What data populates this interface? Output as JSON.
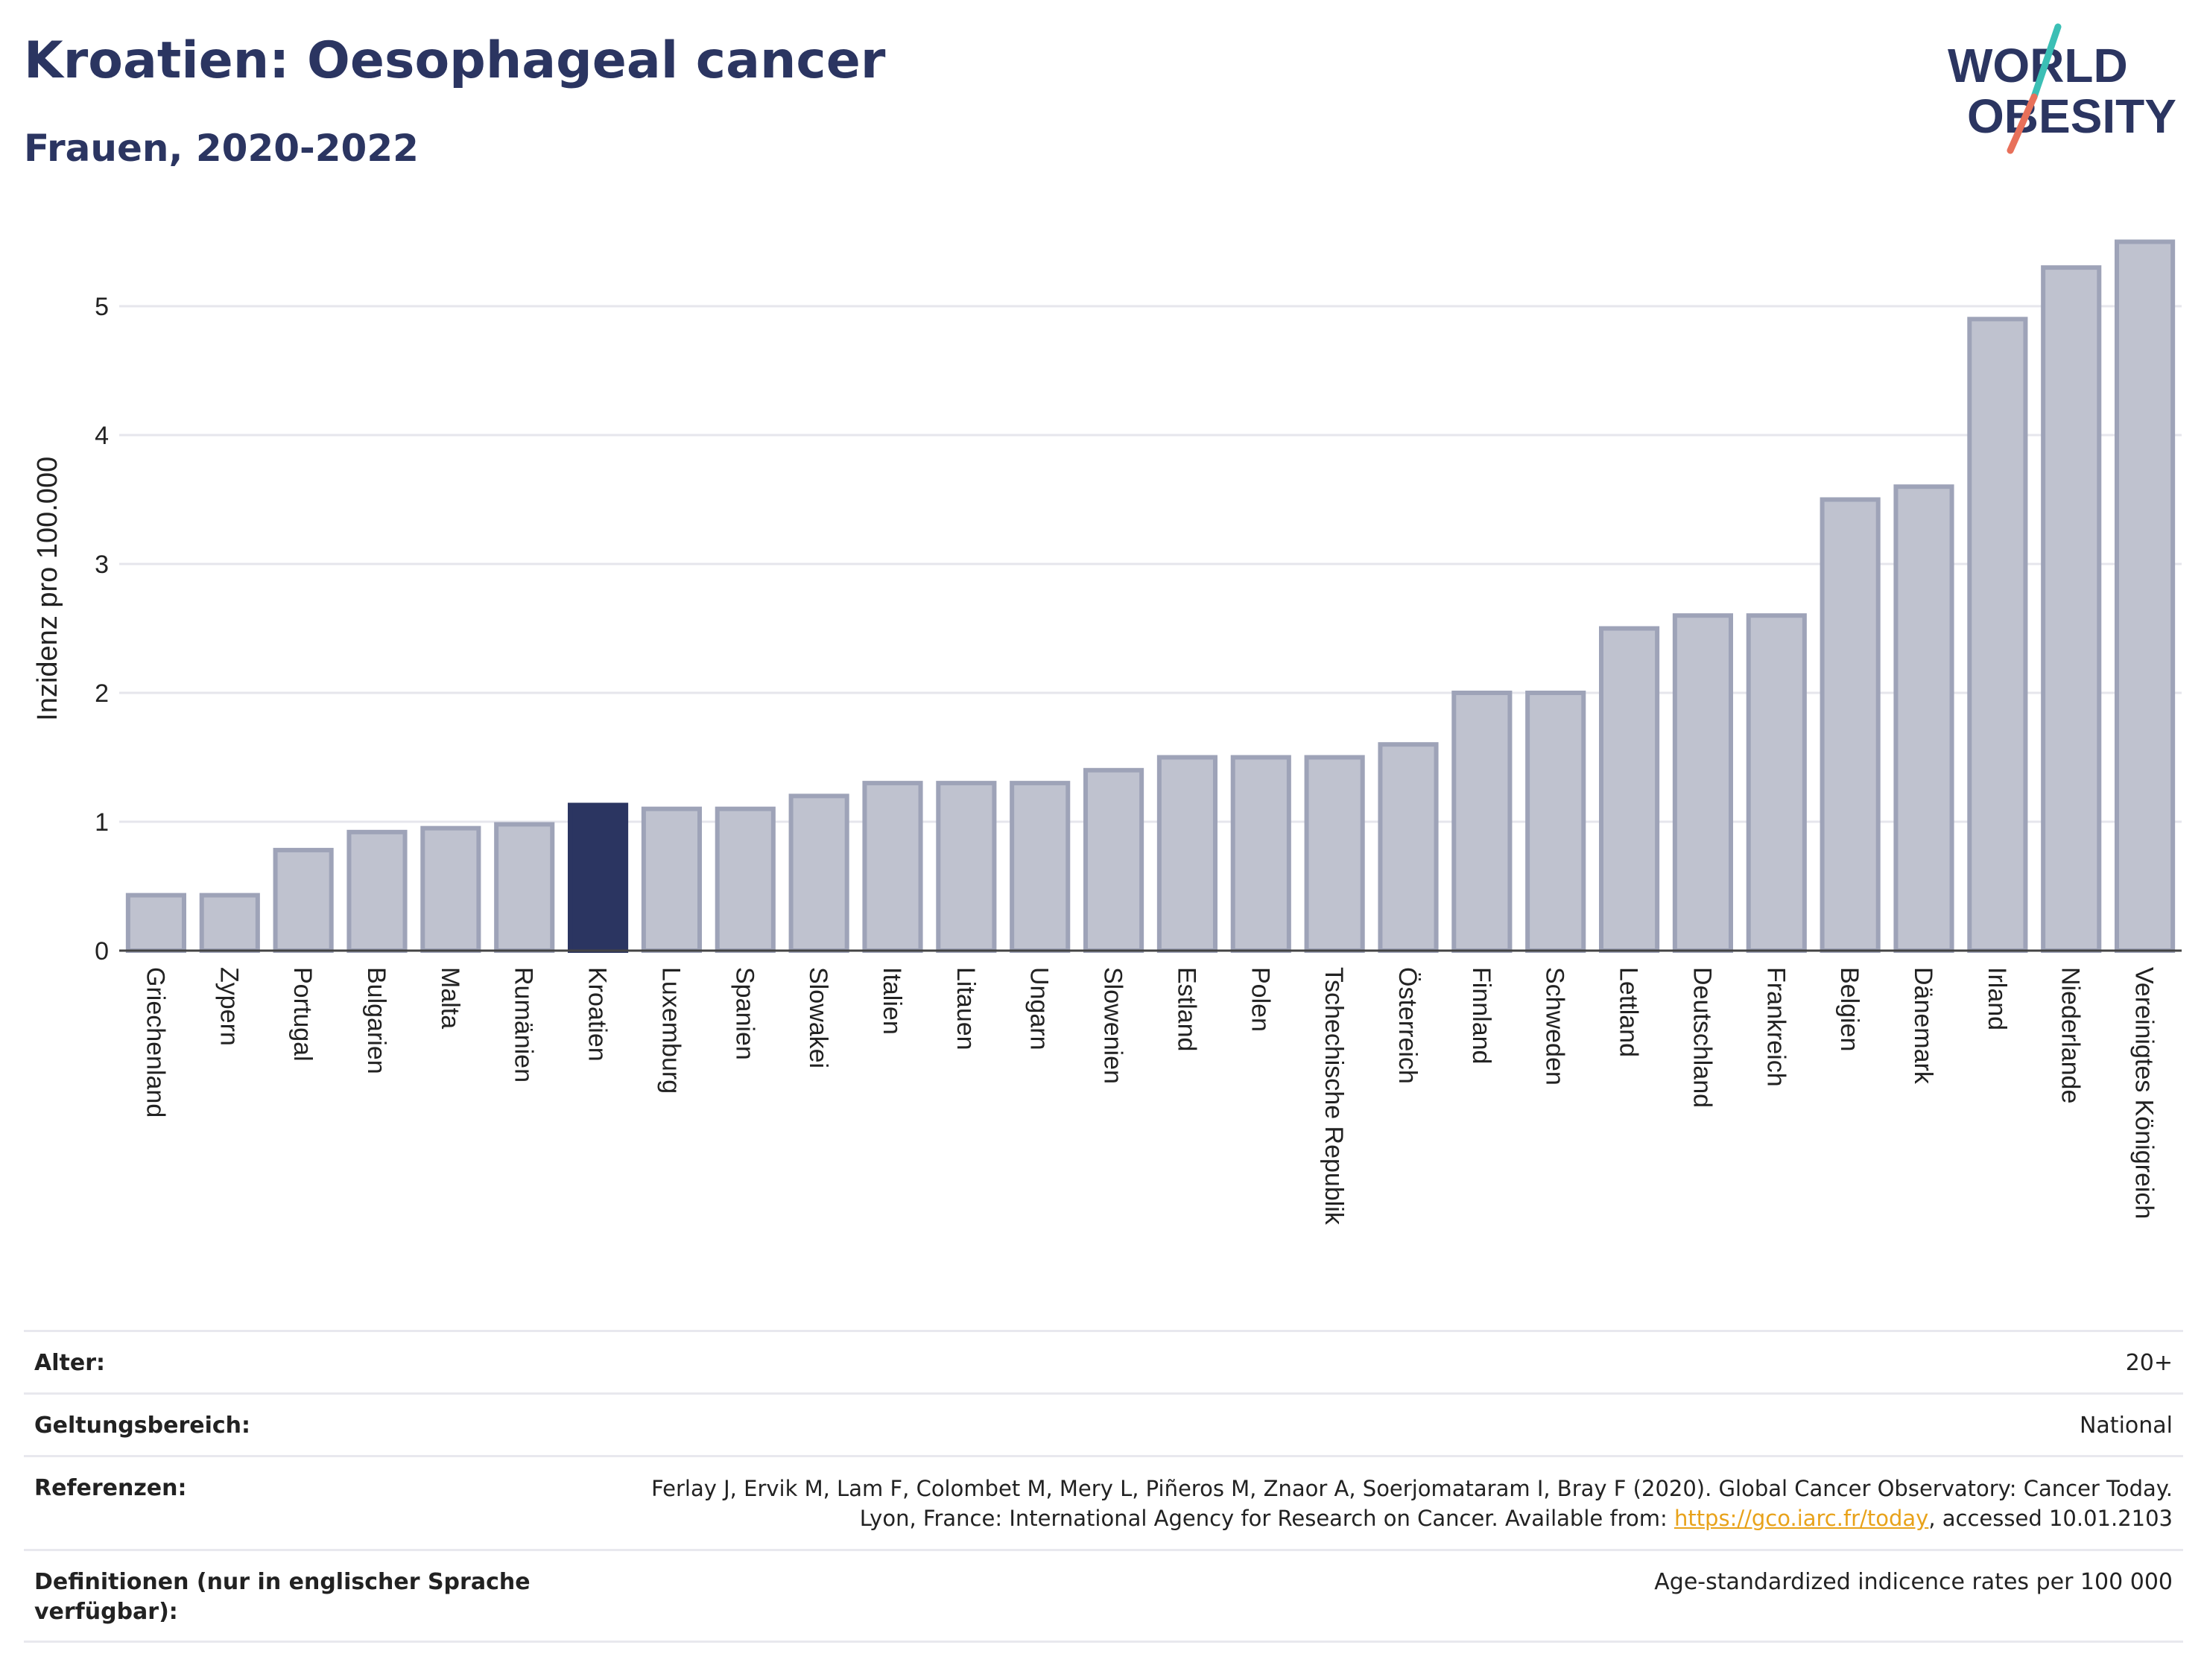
{
  "header": {
    "title": "Kroatien: Oesophageal cancer",
    "subtitle": "Frauen, 2020-2022"
  },
  "logo": {
    "line1": "WORLD",
    "line2": "OBESITY",
    "colors": {
      "text": "#2b3561",
      "slash_top": "#3bbfb5",
      "slash_bottom": "#e8705a"
    }
  },
  "chart_data": {
    "type": "bar",
    "ylabel": "Inzidenz pro 100.000",
    "xlabel": "",
    "ylim": [
      0,
      5.5
    ],
    "yticks": [
      0,
      1,
      2,
      3,
      4,
      5
    ],
    "grid": true,
    "highlight": "Kroatien",
    "colors": {
      "bar": "#bfc2cf",
      "bar_border": "#9ea3b8",
      "highlight": "#2b3561"
    },
    "categories": [
      "Griechenland",
      "Zypern",
      "Portugal",
      "Bulgarien",
      "Malta",
      "Rumänien",
      "Kroatien",
      "Luxemburg",
      "Spanien",
      "Slowakei",
      "Italien",
      "Litauen",
      "Ungarn",
      "Slowenien",
      "Estland",
      "Polen",
      "Tschechische Republik",
      "Österreich",
      "Finnland",
      "Schweden",
      "Lettland",
      "Deutschland",
      "Frankreich",
      "Belgien",
      "Dänemark",
      "Irland",
      "Niederlande",
      "Vereinigtes Königreich"
    ],
    "values": [
      0.43,
      0.43,
      0.78,
      0.92,
      0.95,
      0.98,
      1.13,
      1.1,
      1.1,
      1.2,
      1.3,
      1.3,
      1.3,
      1.4,
      1.5,
      1.5,
      1.5,
      1.6,
      2.0,
      2.0,
      2.5,
      2.6,
      2.6,
      3.5,
      3.6,
      4.9,
      5.3,
      5.5
    ]
  },
  "meta": {
    "rows": [
      {
        "label": "Alter:",
        "value": "20+"
      },
      {
        "label": "Geltungsbereich:",
        "value": "National"
      },
      {
        "label": "Referenzen:",
        "value_pre": "Ferlay J, Ervik M, Lam F, Colombet M, Mery L, Piñeros M, Znaor A, Soerjomataram I, Bray F (2020). Global Cancer Observatory: Cancer Today. Lyon, France: International Agency for Research on Cancer. Available from: ",
        "link": "https://gco.iarc.fr/today",
        "value_post": ", accessed 10.01.2103"
      },
      {
        "label": "Definitionen (nur in englischer Sprache verfügbar):",
        "value": "Age-standardized indicence rates per 100 000"
      }
    ]
  }
}
